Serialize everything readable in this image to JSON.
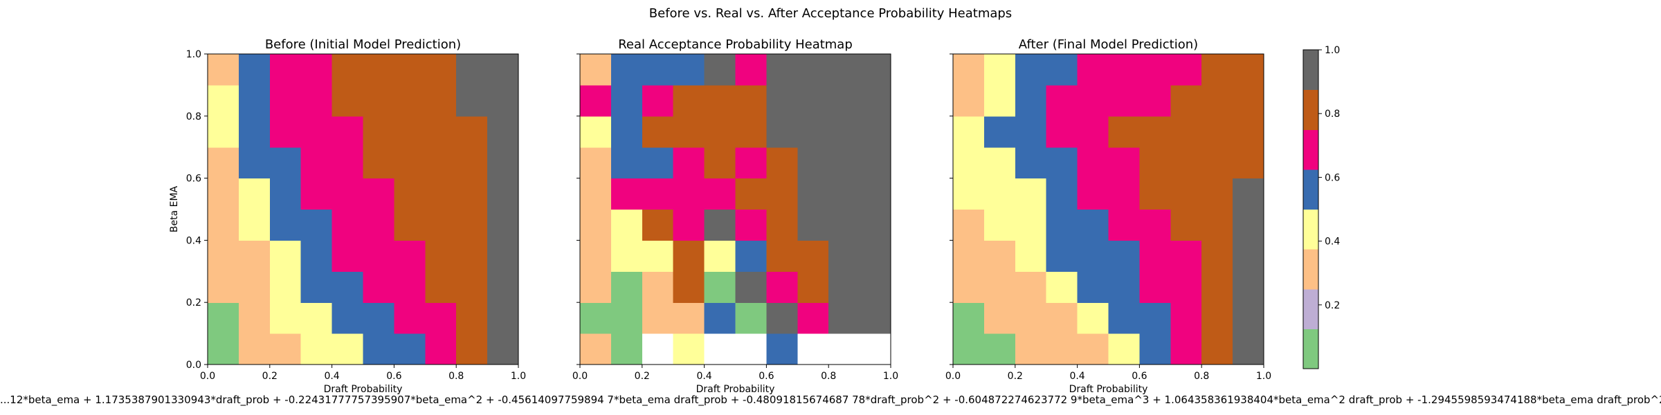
{
  "figure": {
    "suptitle": "Before vs. Real vs. After Acceptance Probability Heatmaps",
    "formula": "...12*beta_ema + 1.1735387901330943*draft_prob + -0.22431777757395907*beta_ema^2 + -0.45614097759894 7*beta_ema draft_prob + -0.48091815674687 78*draft_prob^2 + -0.604872274623772 9*beta_ema^3 + 1.064358361938404*beta_ema^2 draft_prob + -1.2945598593474188*beta_ema draft_prob^2 + 0.607745137407517 8*draft_..."
  },
  "colors": {
    "palette": [
      "#7fc97f",
      "#beaed4",
      "#fdc086",
      "#ffff99",
      "#386cb0",
      "#f0027f",
      "#bf5b17",
      "#666666"
    ],
    "nan": "#ffffff"
  },
  "chart_data": [
    {
      "type": "heatmap",
      "title": "Before (Initial Model Prediction)",
      "xlabel": "Draft Probability",
      "ylabel": "Beta EMA",
      "xlim": [
        0,
        1
      ],
      "ylim": [
        0,
        1
      ],
      "xticks": [
        "0.0",
        "0.2",
        "0.4",
        "0.6",
        "0.8",
        "1.0"
      ],
      "yticks": [
        "0.0",
        "0.2",
        "0.4",
        "0.6",
        "0.8",
        "1.0"
      ],
      "show_yticklabels": true,
      "bin_edges": [
        0,
        0.1,
        0.2,
        0.3,
        0.4,
        0.5,
        0.6,
        0.7,
        0.8,
        0.9,
        1.0
      ],
      "z_rows_bottom_to_top": [
        [
          0.05,
          0.25,
          0.35,
          0.45,
          0.45,
          0.55,
          0.55,
          0.65,
          0.75,
          0.95
        ],
        [
          0.05,
          0.35,
          0.45,
          0.45,
          0.55,
          0.55,
          0.65,
          0.65,
          0.75,
          0.95
        ],
        [
          0.25,
          0.35,
          0.45,
          0.55,
          0.55,
          0.65,
          0.65,
          0.75,
          0.75,
          0.95
        ],
        [
          0.35,
          0.35,
          0.45,
          0.55,
          0.65,
          0.65,
          0.65,
          0.75,
          0.75,
          0.95
        ],
        [
          0.35,
          0.45,
          0.55,
          0.55,
          0.65,
          0.65,
          0.75,
          0.75,
          0.75,
          0.95
        ],
        [
          0.35,
          0.45,
          0.55,
          0.65,
          0.65,
          0.65,
          0.75,
          0.75,
          0.75,
          0.95
        ],
        [
          0.35,
          0.55,
          0.55,
          0.65,
          0.65,
          0.75,
          0.75,
          0.75,
          0.75,
          0.95
        ],
        [
          0.45,
          0.55,
          0.65,
          0.65,
          0.65,
          0.75,
          0.75,
          0.75,
          0.75,
          0.95
        ],
        [
          0.45,
          0.55,
          0.65,
          0.65,
          0.75,
          0.75,
          0.75,
          0.75,
          0.95,
          0.95
        ],
        [
          0.35,
          0.55,
          0.65,
          0.65,
          0.75,
          0.75,
          0.75,
          0.75,
          0.95,
          0.95
        ]
      ]
    },
    {
      "type": "heatmap",
      "title": "Real Acceptance Probability Heatmap",
      "xlabel": "Draft Probability",
      "ylabel": "",
      "xlim": [
        0,
        1
      ],
      "ylim": [
        0,
        1
      ],
      "xticks": [
        "0.0",
        "0.2",
        "0.4",
        "0.6",
        "0.8",
        "1.0"
      ],
      "yticks": [],
      "show_yticklabels": false,
      "bin_edges": [
        0,
        0.1,
        0.2,
        0.3,
        0.4,
        0.5,
        0.6,
        0.7,
        0.8,
        0.9,
        1.0
      ],
      "z_rows_bottom_to_top": [
        [
          0.25,
          0.05,
          null,
          0.45,
          null,
          null,
          0.55,
          null,
          null,
          null
        ],
        [
          0.05,
          0.05,
          0.25,
          0.25,
          0.55,
          0.05,
          0.95,
          0.65,
          0.95,
          0.95
        ],
        [
          0.25,
          0.05,
          0.35,
          0.75,
          0.05,
          0.95,
          0.65,
          0.75,
          0.95,
          0.95
        ],
        [
          0.25,
          0.45,
          0.45,
          0.75,
          0.45,
          0.55,
          0.75,
          0.75,
          0.95,
          0.95
        ],
        [
          0.25,
          0.45,
          0.75,
          0.65,
          0.95,
          0.65,
          0.75,
          0.95,
          0.95,
          0.95
        ],
        [
          0.35,
          0.65,
          0.65,
          0.65,
          0.65,
          0.75,
          0.75,
          0.95,
          0.95,
          0.95
        ],
        [
          0.35,
          0.55,
          0.55,
          0.65,
          0.75,
          0.65,
          0.75,
          0.95,
          0.95,
          0.95
        ],
        [
          0.45,
          0.55,
          0.75,
          0.75,
          0.75,
          0.75,
          0.95,
          0.95,
          0.95,
          0.95
        ],
        [
          0.65,
          0.55,
          0.65,
          0.75,
          0.75,
          0.75,
          0.95,
          0.95,
          0.95,
          0.95
        ],
        [
          0.35,
          0.55,
          0.55,
          0.55,
          0.95,
          0.65,
          0.95,
          0.95,
          0.95,
          0.95
        ]
      ]
    },
    {
      "type": "heatmap",
      "title": "After (Final Model Prediction)",
      "xlabel": "Draft Probability",
      "ylabel": "",
      "xlim": [
        0,
        1
      ],
      "ylim": [
        0,
        1
      ],
      "xticks": [
        "0.0",
        "0.2",
        "0.4",
        "0.6",
        "0.8",
        "1.0"
      ],
      "yticks": [],
      "show_yticklabels": false,
      "bin_edges": [
        0,
        0.1,
        0.2,
        0.3,
        0.4,
        0.5,
        0.6,
        0.7,
        0.8,
        0.9,
        1.0
      ],
      "z_rows_bottom_to_top": [
        [
          0.05,
          0.05,
          0.25,
          0.35,
          0.35,
          0.45,
          0.55,
          0.65,
          0.75,
          0.95
        ],
        [
          0.05,
          0.25,
          0.35,
          0.35,
          0.45,
          0.55,
          0.55,
          0.65,
          0.75,
          0.95
        ],
        [
          0.25,
          0.35,
          0.35,
          0.45,
          0.55,
          0.55,
          0.65,
          0.65,
          0.75,
          0.95
        ],
        [
          0.35,
          0.35,
          0.45,
          0.55,
          0.55,
          0.55,
          0.65,
          0.65,
          0.75,
          0.95
        ],
        [
          0.35,
          0.45,
          0.45,
          0.55,
          0.55,
          0.65,
          0.65,
          0.75,
          0.75,
          0.95
        ],
        [
          0.45,
          0.45,
          0.45,
          0.55,
          0.65,
          0.65,
          0.75,
          0.75,
          0.75,
          0.95
        ],
        [
          0.45,
          0.45,
          0.55,
          0.55,
          0.65,
          0.65,
          0.75,
          0.75,
          0.75,
          0.75
        ],
        [
          0.45,
          0.55,
          0.55,
          0.65,
          0.65,
          0.75,
          0.75,
          0.75,
          0.75,
          0.75
        ],
        [
          0.35,
          0.45,
          0.55,
          0.65,
          0.65,
          0.65,
          0.65,
          0.75,
          0.75,
          0.75
        ],
        [
          0.35,
          0.45,
          0.55,
          0.55,
          0.65,
          0.65,
          0.65,
          0.65,
          0.75,
          0.75
        ]
      ]
    }
  ],
  "colorbar": {
    "vmin": 0,
    "vmax": 1,
    "boundaries": [
      0,
      0.125,
      0.25,
      0.375,
      0.5,
      0.625,
      0.75,
      0.875,
      1.0
    ],
    "ticks": [
      "0.2",
      "0.4",
      "0.6",
      "0.8",
      "1.0"
    ],
    "tick_values": [
      0.2,
      0.4,
      0.6,
      0.8,
      1.0
    ]
  }
}
